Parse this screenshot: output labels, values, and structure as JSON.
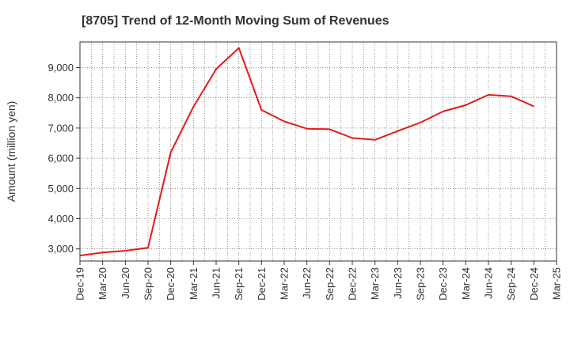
{
  "chart_data": {
    "type": "line",
    "title": "[8705]  Trend of 12-Month Moving Sum of Revenues",
    "xlabel": "",
    "ylabel": "Amount (million yen)",
    "ylim": [
      2600,
      9850
    ],
    "yticks": [
      3000,
      4000,
      5000,
      6000,
      7000,
      8000,
      9000
    ],
    "ytick_labels": [
      "3,000",
      "4,000",
      "5,000",
      "6,000",
      "7,000",
      "8,000",
      "9,000"
    ],
    "categories": [
      "Dec-19",
      "Mar-20",
      "Jun-20",
      "Sep-20",
      "Dec-20",
      "Mar-21",
      "Jun-21",
      "Sep-21",
      "Dec-21",
      "Mar-22",
      "Jun-22",
      "Sep-22",
      "Dec-22",
      "Mar-23",
      "Jun-23",
      "Sep-23",
      "Dec-23",
      "Mar-24",
      "Jun-24",
      "Sep-24",
      "Dec-24",
      "Mar-25"
    ],
    "series": [
      {
        "name": "",
        "color": "#e31a1c",
        "values": [
          2780,
          2880,
          2940,
          3040,
          6200,
          7700,
          8950,
          9650,
          7600,
          7220,
          6980,
          6960,
          6670,
          6610,
          6900,
          7180,
          7550,
          7760,
          8100,
          8050,
          7720,
          null
        ]
      }
    ],
    "grid": true,
    "legend": "none"
  }
}
